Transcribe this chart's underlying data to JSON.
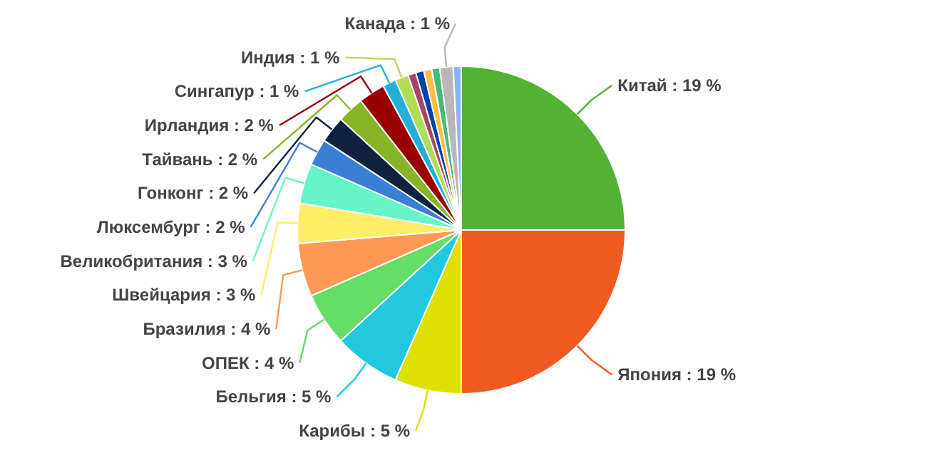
{
  "chart_data": {
    "type": "pie",
    "categories": [
      "Китай",
      "Япония",
      "Карибы",
      "Бельгия",
      "ОПЕК",
      "Бразилия",
      "Швейцария",
      "Великобритания",
      "Люксембург",
      "Гонконг",
      "Тайвань",
      "Ирландия",
      "Сингапур",
      "Индия",
      null,
      null,
      null,
      null,
      "Канада",
      null
    ],
    "values": [
      19,
      19,
      5,
      5,
      4,
      4,
      3,
      3,
      2,
      2,
      2,
      2,
      1,
      1,
      0.6,
      0.6,
      0.6,
      0.6,
      1,
      0.6
    ],
    "value_labels": [
      "19 %",
      "19 %",
      "5 %",
      "5 %",
      "4 %",
      "4 %",
      "3 %",
      "3 %",
      "2 %",
      "2 %",
      "2 %",
      "2 %",
      "1 %",
      "1 %",
      null,
      null,
      null,
      null,
      "1 %",
      null
    ],
    "colors": [
      "#53b135",
      "#ee5a1f",
      "#dde000",
      "#22c7e0",
      "#66dd66",
      "#ff9955",
      "#ffee66",
      "#66f5c8",
      "#3a7fd6",
      "#0f2340",
      "#88b526",
      "#990000",
      "#22b0d8",
      "#b0dd55",
      "#aa4466",
      "#0044aa",
      "#ffbb44",
      "#44bb77",
      "#b8b8b8",
      "#88b4ff"
    ]
  }
}
